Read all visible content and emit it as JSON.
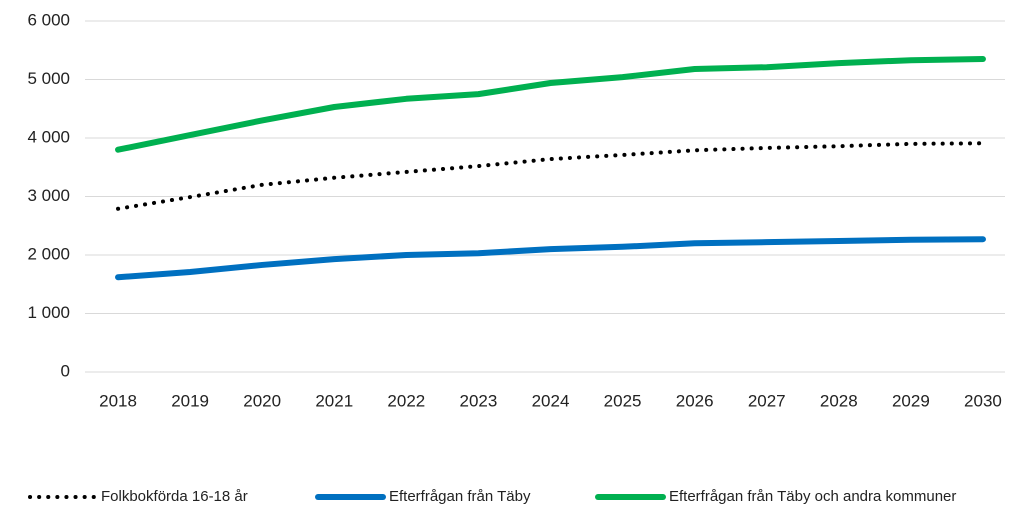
{
  "chart_data": {
    "type": "line",
    "categories": [
      "2018",
      "2019",
      "2020",
      "2021",
      "2022",
      "2023",
      "2024",
      "2025",
      "2026",
      "2027",
      "2028",
      "2029",
      "2030"
    ],
    "series": [
      {
        "name": "Folkbokförda 16-18 år",
        "color": "#000000",
        "style": "dotted",
        "values": [
          2790,
          2990,
          3200,
          3320,
          3420,
          3520,
          3640,
          3710,
          3790,
          3830,
          3860,
          3900,
          3910
        ]
      },
      {
        "name": "Efterfrågan från Täby",
        "color": "#0070c0",
        "style": "solid",
        "values": [
          1620,
          1710,
          1830,
          1930,
          2000,
          2030,
          2100,
          2140,
          2200,
          2220,
          2240,
          2260,
          2270
        ]
      },
      {
        "name": "Efterfrågan från Täby och andra kommuner",
        "color": "#00b050",
        "style": "solid",
        "values": [
          3800,
          4050,
          4300,
          4530,
          4670,
          4750,
          4940,
          5040,
          5180,
          5210,
          5280,
          5330,
          5350
        ]
      }
    ],
    "ylim": [
      0,
      6000
    ],
    "yticks": [
      0,
      {
        "value": 1000,
        "label": "1 000"
      },
      {
        "value": 2000,
        "label": "2 000"
      },
      {
        "value": 3000,
        "label": "3 000"
      },
      {
        "value": 4000,
        "label": "4 000"
      },
      {
        "value": 5000,
        "label": "5 000"
      },
      {
        "value": 6000,
        "label": "6 000"
      }
    ],
    "grid": true,
    "legend": "bottom"
  }
}
